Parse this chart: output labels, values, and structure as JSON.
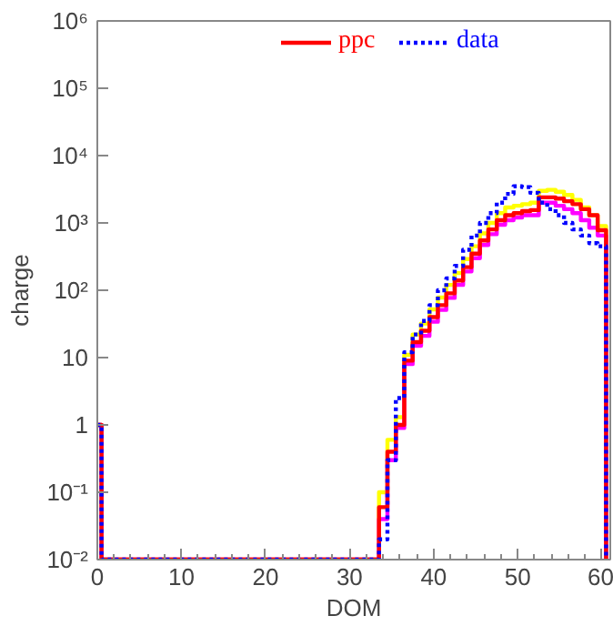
{
  "chart_data": {
    "type": "histogram",
    "xlabel": "DOM",
    "ylabel": "charge",
    "log": "y",
    "xlim": [
      0,
      61
    ],
    "ylim": [
      0.01,
      1000000
    ],
    "xticks": [
      0,
      10,
      20,
      30,
      40,
      50,
      60
    ],
    "yticks": [
      {
        "value": 0.01,
        "label": "10⁻²"
      },
      {
        "value": 0.1,
        "label": "10⁻¹"
      },
      {
        "value": 1,
        "label": "1"
      },
      {
        "value": 10,
        "label": "10"
      },
      {
        "value": 100,
        "label": "10²"
      },
      {
        "value": 1000,
        "label": "10³"
      },
      {
        "value": 10000,
        "label": "10⁴"
      },
      {
        "value": 100000,
        "label": "10⁵"
      },
      {
        "value": 1000000,
        "label": "10⁶"
      }
    ],
    "grid": false,
    "legend": "top",
    "bins": [
      -0.5,
      0.5,
      1.5,
      2.5,
      3.5,
      4.5,
      5.5,
      6.5,
      7.5,
      8.5,
      9.5,
      10.5,
      11.5,
      12.5,
      13.5,
      14.5,
      15.5,
      16.5,
      17.5,
      18.5,
      19.5,
      20.5,
      21.5,
      22.5,
      23.5,
      24.5,
      25.5,
      26.5,
      27.5,
      28.5,
      29.5,
      30.5,
      31.5,
      32.5,
      33.5,
      34.5,
      35.5,
      36.5,
      37.5,
      38.5,
      39.5,
      40.5,
      41.5,
      42.5,
      43.5,
      44.5,
      45.5,
      46.5,
      47.5,
      48.5,
      49.5,
      50.5,
      51.5,
      52.5,
      53.5,
      54.5,
      55.5,
      56.5,
      57.5,
      58.5,
      59.5,
      60.5
    ],
    "series": [
      {
        "color": "#ffff00",
        "line_style": "solid",
        "values": [
          1,
          null,
          null,
          null,
          null,
          null,
          null,
          null,
          null,
          null,
          null,
          null,
          null,
          null,
          null,
          null,
          null,
          null,
          null,
          null,
          null,
          null,
          null,
          null,
          null,
          null,
          null,
          null,
          null,
          null,
          null,
          null,
          null,
          null,
          0.1,
          0.6,
          1.3,
          11,
          22,
          32,
          52,
          78,
          120,
          180,
          290,
          450,
          700,
          1000,
          1400,
          1700,
          1800,
          1900,
          2000,
          3000,
          3100,
          2900,
          2600,
          2200,
          1700,
          1300,
          900
        ]
      },
      {
        "color": "#ff00ff",
        "line_style": "solid",
        "values": [
          1,
          null,
          null,
          null,
          null,
          null,
          null,
          null,
          null,
          null,
          null,
          null,
          null,
          null,
          null,
          null,
          null,
          null,
          null,
          null,
          null,
          null,
          null,
          null,
          null,
          null,
          null,
          null,
          null,
          null,
          null,
          null,
          null,
          null,
          0.04,
          0.3,
          0.9,
          8,
          15,
          21,
          34,
          51,
          77,
          120,
          190,
          300,
          470,
          680,
          940,
          1100,
          1200,
          1300,
          1300,
          2000,
          2000,
          1800,
          1600,
          1400,
          1100,
          850,
          650
        ]
      },
      {
        "name": "ppc",
        "color": "#ff0000",
        "line_style": "solid",
        "values": [
          1,
          null,
          null,
          null,
          null,
          null,
          null,
          null,
          null,
          null,
          null,
          null,
          null,
          null,
          null,
          null,
          null,
          null,
          null,
          null,
          null,
          null,
          null,
          null,
          null,
          null,
          null,
          null,
          null,
          null,
          null,
          null,
          null,
          null,
          0.06,
          0.4,
          1,
          9,
          17,
          25,
          40,
          60,
          90,
          140,
          220,
          350,
          550,
          800,
          1100,
          1300,
          1400,
          1500,
          1550,
          2400,
          2400,
          2300,
          2100,
          1900,
          1600,
          1300,
          780
        ]
      },
      {
        "name": "data",
        "color": "#0000ff",
        "line_style": "dotted",
        "values": [
          1,
          null,
          null,
          null,
          null,
          null,
          null,
          null,
          null,
          null,
          null,
          null,
          null,
          null,
          null,
          null,
          null,
          null,
          null,
          null,
          null,
          null,
          null,
          null,
          null,
          null,
          null,
          null,
          null,
          null,
          null,
          null,
          null,
          null,
          0.02,
          0.3,
          2.5,
          12,
          22,
          35,
          60,
          100,
          150,
          230,
          400,
          650,
          1000,
          1400,
          2000,
          2700,
          3500,
          3400,
          2800,
          2000,
          1600,
          1300,
          1000,
          800,
          650,
          500,
          450
        ]
      }
    ]
  }
}
